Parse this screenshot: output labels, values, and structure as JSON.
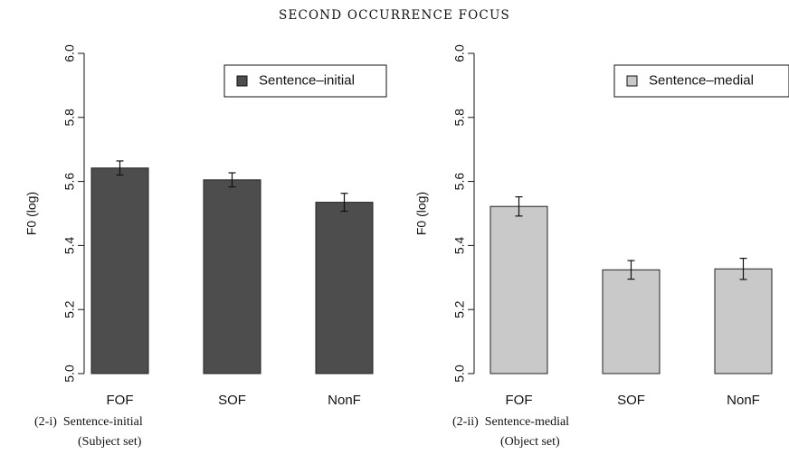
{
  "figure_title": "SECOND OCCURRENCE FOCUS",
  "chart_data": [
    {
      "type": "bar",
      "categories": [
        "FOF",
        "SOF",
        "NonF"
      ],
      "series": [
        {
          "name": "Sentence–initial",
          "values": [
            5.642,
            5.605,
            5.535
          ],
          "error": [
            0.022,
            0.022,
            0.028
          ],
          "color": "#4d4d4d"
        }
      ],
      "ylabel": "F0 (log)",
      "ylim": [
        5.0,
        6.0
      ],
      "yticks": [
        "5.0",
        "5.2",
        "5.4",
        "5.6",
        "5.8",
        "6.0"
      ],
      "legend_position": "top-right",
      "caption": [
        "(2-i)  Sentence-initial",
        "(Subject set)"
      ]
    },
    {
      "type": "bar",
      "categories": [
        "FOF",
        "SOF",
        "NonF"
      ],
      "series": [
        {
          "name": "Sentence–medial",
          "values": [
            5.522,
            5.324,
            5.327
          ],
          "error": [
            0.03,
            0.029,
            0.033
          ],
          "color": "#c9c9c9"
        }
      ],
      "ylabel": "F0 (log)",
      "ylim": [
        5.0,
        6.0
      ],
      "yticks": [
        "5.0",
        "5.2",
        "5.4",
        "5.6",
        "5.8",
        "6.0"
      ],
      "legend_position": "top-right",
      "caption": [
        "(2-ii)  Sentence-medial",
        "(Object set)"
      ]
    }
  ]
}
